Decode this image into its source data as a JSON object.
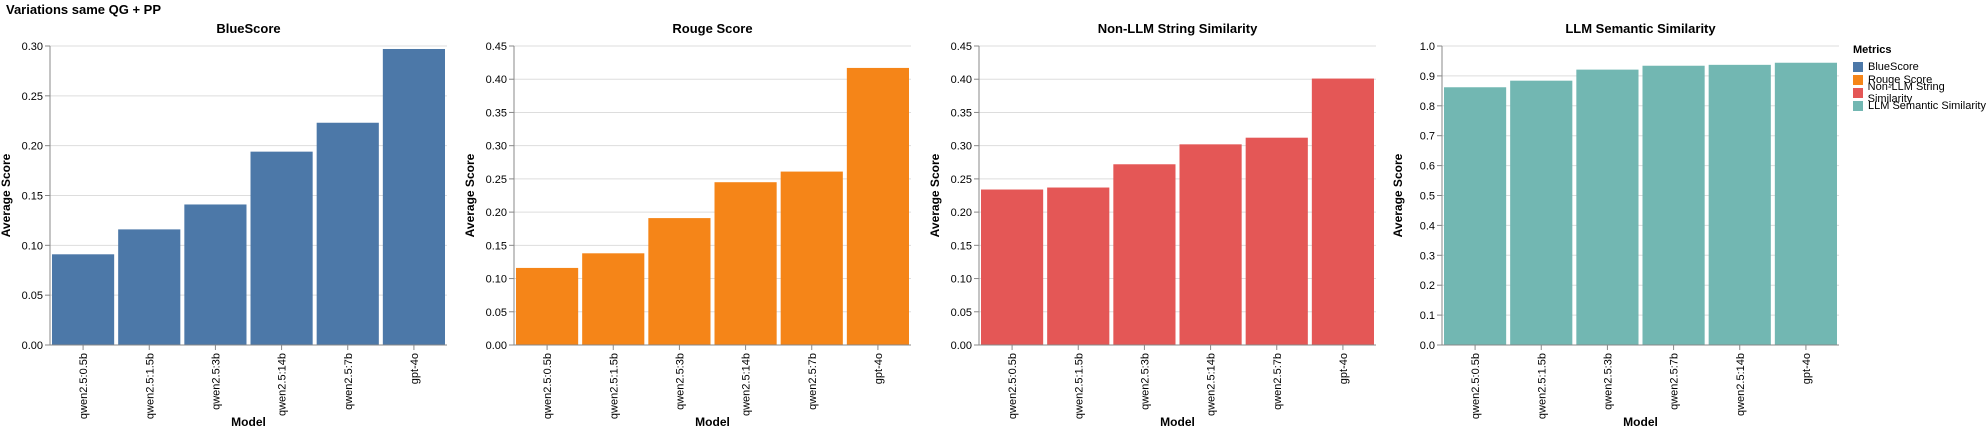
{
  "figure_title": "Variations same QG + PP",
  "legend": {
    "title": "Metrics",
    "items": [
      {
        "label": "BlueScore",
        "color": "#4c78a8"
      },
      {
        "label": "Rouge Score",
        "color": "#f58518"
      },
      {
        "label": "Non-LLM String Similarity",
        "color": "#e45756"
      },
      {
        "label": "LLM Semantic Similarity",
        "color": "#72b7b2"
      }
    ]
  },
  "chart_data": [
    {
      "type": "bar",
      "title": "BlueScore",
      "xlabel": "Model",
      "ylabel": "Average Score",
      "color": "#4c78a8",
      "categories": [
        "qwen2.5:0.5b",
        "qwen2.5:1.5b",
        "qwen2.5:3b",
        "qwen2.5:14b",
        "qwen2.5:7b",
        "gpt-4o"
      ],
      "values": [
        0.091,
        0.116,
        0.141,
        0.194,
        0.223,
        0.297
      ],
      "ylim": [
        0,
        0.3
      ],
      "yticks": [
        "0.00",
        "0.05",
        "0.10",
        "0.15",
        "0.20",
        "0.25",
        "0.30"
      ],
      "grid": true
    },
    {
      "type": "bar",
      "title": "Rouge Score",
      "xlabel": "Model",
      "ylabel": "Average Score",
      "color": "#f58518",
      "categories": [
        "qwen2.5:0.5b",
        "qwen2.5:1.5b",
        "qwen2.5:3b",
        "qwen2.5:14b",
        "qwen2.5:7b",
        "gpt-4o"
      ],
      "values": [
        0.116,
        0.138,
        0.191,
        0.245,
        0.261,
        0.417
      ],
      "ylim": [
        0,
        0.45
      ],
      "yticks": [
        "0.00",
        "0.05",
        "0.10",
        "0.15",
        "0.20",
        "0.25",
        "0.30",
        "0.35",
        "0.40",
        "0.45"
      ],
      "grid": true
    },
    {
      "type": "bar",
      "title": "Non-LLM String Similarity",
      "xlabel": "Model",
      "ylabel": "Average Score",
      "color": "#e45756",
      "categories": [
        "qwen2.5:0.5b",
        "qwen2.5:1.5b",
        "qwen2.5:3b",
        "qwen2.5:14b",
        "qwen2.5:7b",
        "gpt-4o"
      ],
      "values": [
        0.234,
        0.237,
        0.272,
        0.302,
        0.312,
        0.401
      ],
      "ylim": [
        0,
        0.45
      ],
      "yticks": [
        "0.00",
        "0.05",
        "0.10",
        "0.15",
        "0.20",
        "0.25",
        "0.30",
        "0.35",
        "0.40",
        "0.45"
      ],
      "grid": true
    },
    {
      "type": "bar",
      "title": "LLM Semantic Similarity",
      "xlabel": "Model",
      "ylabel": "Average Score",
      "color": "#72b7b2",
      "categories": [
        "qwen2.5:0.5b",
        "qwen2.5:1.5b",
        "qwen2.5:3b",
        "qwen2.5:7b",
        "qwen2.5:14b",
        "gpt-4o"
      ],
      "values": [
        0.862,
        0.884,
        0.921,
        0.934,
        0.937,
        0.944
      ],
      "ylim": [
        0,
        1.0
      ],
      "yticks": [
        "0.0",
        "0.1",
        "0.2",
        "0.3",
        "0.4",
        "0.5",
        "0.6",
        "0.7",
        "0.8",
        "0.9",
        "1.0"
      ],
      "grid": true
    }
  ]
}
